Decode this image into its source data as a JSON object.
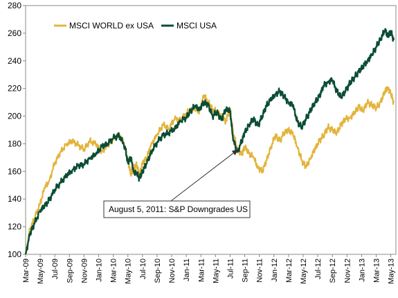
{
  "chart_data": {
    "type": "line",
    "title": "",
    "xlabel": "",
    "ylabel": "",
    "ylim": [
      100,
      280
    ],
    "yticks": [
      100,
      120,
      140,
      160,
      180,
      200,
      220,
      240,
      260,
      280
    ],
    "grid": false,
    "legend_position": "top-left",
    "x_categories": [
      "Mar-09",
      "May-09",
      "Jul-09",
      "Sep-09",
      "Nov-09",
      "Jan-10",
      "Mar-10",
      "May-10",
      "Jul-10",
      "Sep-10",
      "Nov-10",
      "Jan-11",
      "Mar-11",
      "May-11",
      "Jul-11",
      "Sep-11",
      "Nov-11",
      "Jan-12",
      "Mar-12",
      "May-12",
      "Jul-12",
      "Sep-12",
      "Nov-12",
      "Jan-13",
      "Mar-13",
      "May-13"
    ],
    "series": [
      {
        "name": "MSCI WORLD ex USA",
        "color": "#e3b43c",
        "x": [
          0,
          0.3,
          0.6,
          1.0,
          1.3,
          1.6,
          2.0,
          2.4,
          2.8,
          3.2,
          3.6,
          4.0,
          4.4,
          4.8,
          5.2,
          5.6,
          6.0,
          6.4,
          6.8,
          7.0,
          7.2,
          7.4,
          7.6,
          7.8,
          8.0,
          8.3,
          8.6,
          9.0,
          9.4,
          9.8,
          10.2,
          10.6,
          11.0,
          11.3,
          11.6,
          11.9,
          12.2,
          12.5,
          12.8,
          13.1,
          13.4,
          13.7,
          14.0,
          14.2,
          14.5,
          14.8,
          15.0,
          15.3,
          15.6,
          15.9,
          16.2,
          16.5,
          16.8,
          17.1,
          17.4,
          17.7,
          18.0,
          18.3,
          18.6,
          18.9,
          19.2,
          19.5,
          19.8,
          20.1,
          20.4,
          20.7,
          21.0,
          21.3,
          21.6,
          21.9,
          22.2,
          22.5,
          22.8,
          23.1,
          23.4,
          23.7,
          24.0,
          24.3,
          24.6,
          24.8,
          25.0,
          25.2
        ],
        "values": [
          100,
          118,
          126,
          137,
          148,
          153,
          166,
          174,
          180,
          182,
          179,
          176,
          182,
          180,
          174,
          179,
          183,
          188,
          178,
          168,
          158,
          162,
          165,
          157,
          166,
          170,
          180,
          186,
          194,
          191,
          198,
          197,
          202,
          204,
          206,
          203,
          215,
          210,
          205,
          203,
          200,
          196,
          205,
          188,
          176,
          172,
          178,
          173,
          170,
          163,
          160,
          168,
          178,
          186,
          182,
          188,
          190,
          187,
          178,
          168,
          163,
          170,
          176,
          182,
          186,
          192,
          190,
          188,
          194,
          198,
          199,
          202,
          207,
          204,
          210,
          208,
          206,
          210,
          218,
          221,
          216,
          210
        ]
      },
      {
        "name": "MSCI USA",
        "color": "#0b4d35",
        "x": [
          0,
          0.3,
          0.6,
          1.0,
          1.3,
          1.6,
          2.0,
          2.4,
          2.8,
          3.2,
          3.6,
          4.0,
          4.4,
          4.8,
          5.2,
          5.6,
          6.0,
          6.4,
          6.8,
          7.0,
          7.2,
          7.4,
          7.6,
          7.8,
          8.0,
          8.3,
          8.6,
          9.0,
          9.4,
          9.8,
          10.2,
          10.6,
          11.0,
          11.3,
          11.6,
          11.9,
          12.2,
          12.5,
          12.8,
          13.1,
          13.4,
          13.7,
          14.0,
          14.2,
          14.5,
          14.8,
          15.0,
          15.3,
          15.6,
          15.9,
          16.2,
          16.5,
          16.8,
          17.1,
          17.4,
          17.7,
          18.0,
          18.3,
          18.6,
          18.9,
          19.2,
          19.5,
          19.8,
          20.1,
          20.4,
          20.7,
          21.0,
          21.3,
          21.6,
          21.9,
          22.2,
          22.5,
          22.8,
          23.1,
          23.4,
          23.7,
          24.0,
          24.3,
          24.6,
          24.8,
          25.0,
          25.2
        ],
        "values": [
          100,
          115,
          122,
          132,
          135,
          139,
          147,
          152,
          157,
          161,
          164,
          165,
          170,
          172,
          178,
          180,
          184,
          186,
          178,
          166,
          170,
          160,
          158,
          155,
          160,
          166,
          174,
          181,
          186,
          188,
          191,
          196,
          199,
          204,
          207,
          205,
          210,
          208,
          200,
          203,
          197,
          205,
          204,
          183,
          174,
          182,
          188,
          194,
          198,
          193,
          200,
          208,
          212,
          216,
          218,
          214,
          210,
          208,
          196,
          192,
          198,
          204,
          210,
          214,
          222,
          225,
          226,
          218,
          214,
          218,
          224,
          228,
          232,
          236,
          240,
          244,
          250,
          256,
          262,
          258,
          261,
          255
        ]
      }
    ],
    "annotation": {
      "text": "August 5, 2011: S&P Downgrades US",
      "target_x": 14.8,
      "target_y": 181
    }
  }
}
